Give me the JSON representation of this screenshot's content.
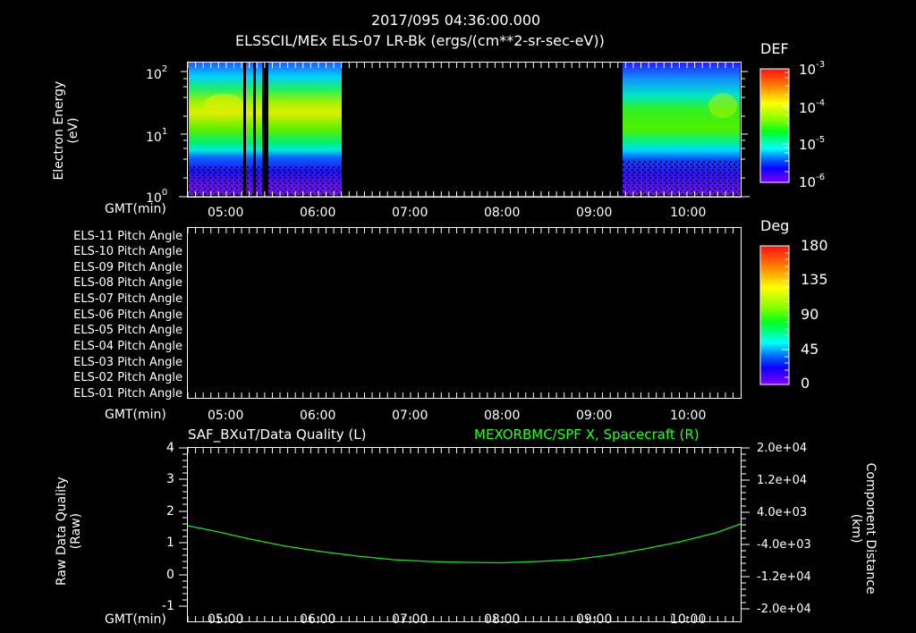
{
  "header": {
    "timestamp": "2017/095 04:36:00.000",
    "title": "ELSSCIL/MEx ELS-07 LR-Bk  (ergs/(cm**2-sr-sec-eV))"
  },
  "time_axis": {
    "label": "GMT(min)",
    "ticks": [
      "05:00",
      "06:00",
      "07:00",
      "08:00",
      "09:00",
      "10:00"
    ]
  },
  "panel1": {
    "ylabel_line1": "Electron Energy",
    "ylabel_line2": "(eV)",
    "yticks": [
      {
        "base": "10",
        "exp": "2"
      },
      {
        "base": "10",
        "exp": "1"
      },
      {
        "base": "10",
        "exp": "0"
      }
    ],
    "colorbar": {
      "title": "DEF",
      "ticks": [
        {
          "base": "10",
          "exp": "-3"
        },
        {
          "base": "10",
          "exp": "-4"
        },
        {
          "base": "10",
          "exp": "-5"
        },
        {
          "base": "10",
          "exp": "-6"
        }
      ]
    }
  },
  "panel2": {
    "row_labels": [
      "ELS-11 Pitch Angle",
      "ELS-10 Pitch Angle",
      "ELS-09 Pitch Angle",
      "ELS-08 Pitch Angle",
      "ELS-07 Pitch Angle",
      "ELS-06 Pitch Angle",
      "ELS-05 Pitch Angle",
      "ELS-04 Pitch Angle",
      "ELS-03 Pitch Angle",
      "ELS-02 Pitch Angle",
      "ELS-01 Pitch Angle"
    ],
    "colorbar": {
      "title": "Deg",
      "ticks": [
        "180",
        "135",
        "90",
        "45",
        "0"
      ]
    }
  },
  "panel3": {
    "left_title": "SAF_BXuT/Data Quality (L)",
    "right_title": "MEXORBMC/SPF X, Spacecraft (R)",
    "ylabel_left_line1": "Raw Data Quality",
    "ylabel_left_line2": "(Raw)",
    "ylabel_right_line1": "Component Distance",
    "ylabel_right_line2": "(km)",
    "left_ticks": [
      "4",
      "3",
      "2",
      "1",
      "0",
      "-1"
    ],
    "right_ticks": [
      "2.0e+04",
      "1.2e+04",
      "4.0e+03",
      "-4.0e+03",
      "-1.2e+04",
      "-2.0e+04"
    ],
    "line_color": "#22dd22"
  },
  "chart_data": [
    {
      "type": "heatmap",
      "title": "ELSSCIL/MEx ELS-07 LR-Bk (ergs/(cm**2-sr-sec-eV))",
      "xlabel": "GMT(min)",
      "ylabel": "Electron Energy (eV)",
      "x_range": [
        "04:36",
        "10:36"
      ],
      "y_range": [
        1,
        150
      ],
      "y_scale": "log",
      "colorbar_label": "DEF",
      "colorbar_range": [
        1e-06,
        0.001
      ],
      "data_intervals": [
        [
          "04:36",
          "06:16"
        ],
        [
          "09:20",
          "10:36"
        ]
      ],
      "data_gaps": [
        "05:13",
        "05:20",
        "05:25-05:27"
      ],
      "peak_energy_band_eV": [
        15,
        60
      ],
      "notes": "Peak DEF ~2e-4 near 20-40 eV; low energies (<5 eV) ~1e-6"
    },
    {
      "type": "heatmap",
      "title": "ELS Pitch Angle",
      "xlabel": "GMT(min)",
      "categories": [
        "ELS-11",
        "ELS-10",
        "ELS-09",
        "ELS-08",
        "ELS-07",
        "ELS-06",
        "ELS-05",
        "ELS-04",
        "ELS-03",
        "ELS-02",
        "ELS-01"
      ],
      "colorbar_label": "Deg",
      "colorbar_range": [
        0,
        180
      ],
      "notes": "No data (empty panel)"
    },
    {
      "type": "line",
      "title_left": "SAF_BXuT/Data Quality (L)",
      "title_right": "MEXORBMC/SPF X, Spacecraft (R)",
      "xlabel": "GMT(min)",
      "ylabel_left": "Raw Data Quality (Raw)",
      "ylabel_right": "Component Distance (km)",
      "ylim_left": [
        -1,
        4
      ],
      "ylim_right": [
        -20000,
        20000
      ],
      "series": [
        {
          "name": "MEXORBMC/SPF X, Spacecraft",
          "axis": "right",
          "x": [
            "04:36",
            "05:00",
            "06:00",
            "07:00",
            "07:30",
            "08:00",
            "08:30",
            "09:00",
            "10:00",
            "10:36"
          ],
          "values": [
            -3000,
            -4600,
            -7800,
            -9800,
            -10300,
            -10400,
            -10000,
            -9000,
            -5500,
            -2800
          ]
        }
      ]
    }
  ]
}
